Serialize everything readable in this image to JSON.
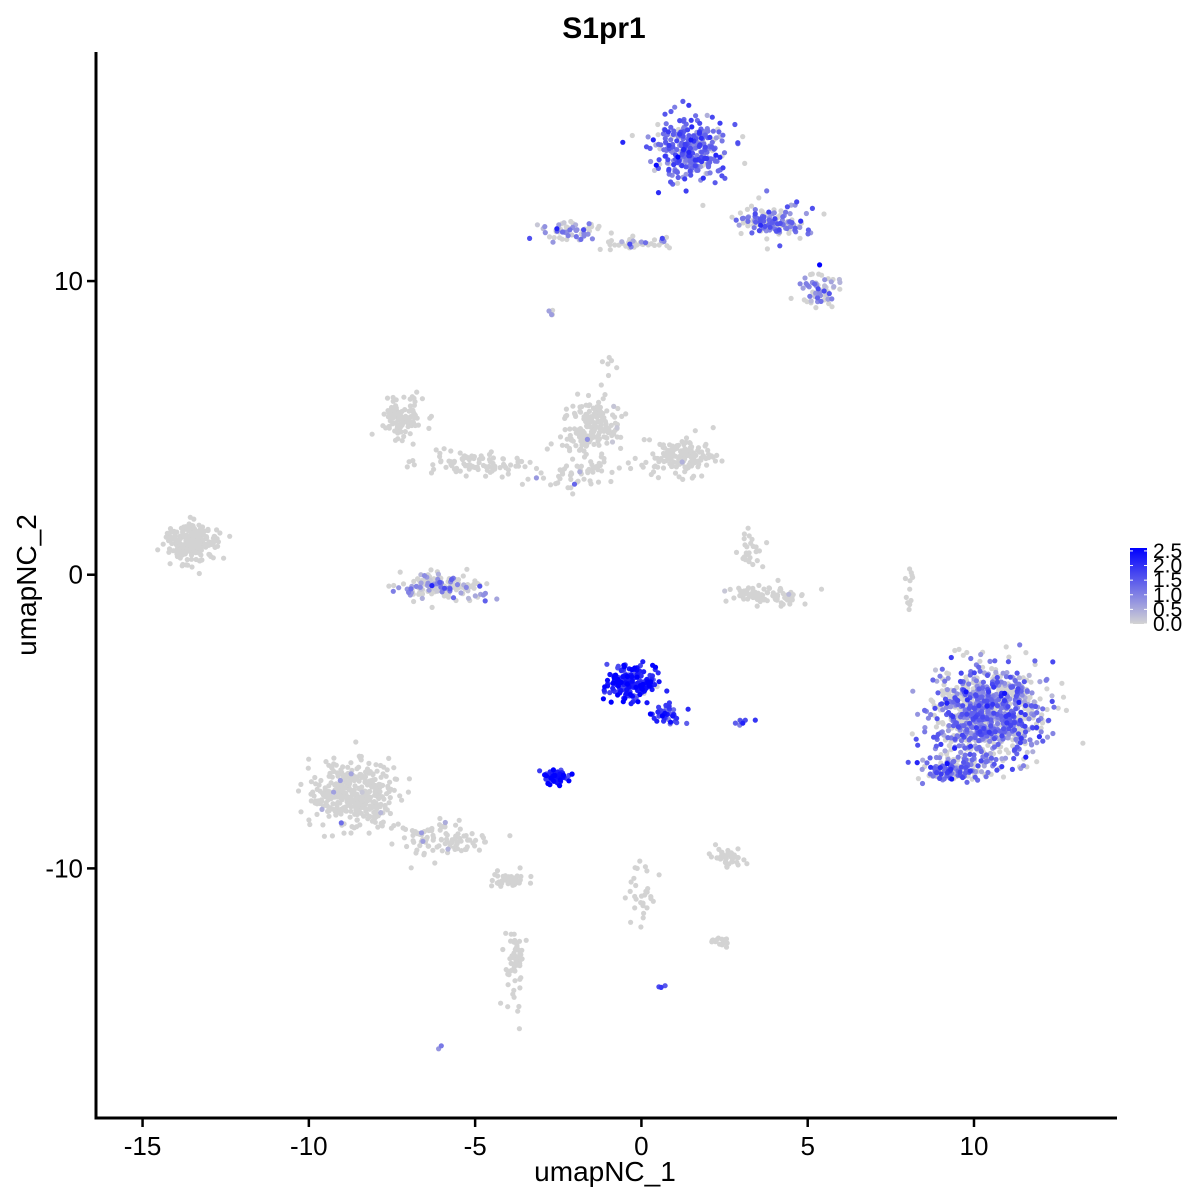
{
  "chart_data": {
    "type": "scatter",
    "title": "S1pr1",
    "xlabel": "umapNC_1",
    "ylabel": "umapNC_2",
    "xlim": [
      -16.4,
      14.3
    ],
    "ylim": [
      -18.5,
      17.8
    ],
    "x_ticks": [
      -15,
      -10,
      -5,
      0,
      5,
      10
    ],
    "x_tick_labels": [
      "-15",
      "-10",
      "-5",
      "0",
      "5",
      "10"
    ],
    "y_ticks": [
      10,
      0,
      -10
    ],
    "y_tick_labels": [
      "10",
      "0",
      "-10"
    ],
    "grid": false,
    "legend_position": "right",
    "color_scale": {
      "low_color": "#d3d3d3",
      "high_color": "#0000ff",
      "min": 0.0,
      "max": 2.6,
      "breaks": [
        2.5,
        2.0,
        1.5,
        1.0,
        0.5,
        0.0
      ],
      "break_labels": [
        "2.5",
        "2.0",
        "1.5",
        "1.0",
        "0.5",
        "0.0"
      ]
    },
    "clusters": [
      {
        "center": [
          1.5,
          14.5
        ],
        "spread": [
          1.0,
          1.0
        ],
        "n": 300,
        "expr_mean": 1.3,
        "expr_frac": 0.85
      },
      {
        "center": [
          3.9,
          12.0
        ],
        "spread": [
          1.0,
          0.5
        ],
        "n": 140,
        "expr_mean": 1.2,
        "expr_frac": 0.6
      },
      {
        "center": [
          5.4,
          9.7
        ],
        "spread": [
          0.5,
          0.6
        ],
        "n": 60,
        "expr_mean": 0.9,
        "expr_frac": 0.45
      },
      {
        "center": [
          -2.2,
          11.7
        ],
        "spread": [
          0.9,
          0.35
        ],
        "n": 60,
        "expr_mean": 0.9,
        "expr_frac": 0.35
      },
      {
        "center": [
          -0.2,
          11.3
        ],
        "spread": [
          1.0,
          0.25
        ],
        "n": 40,
        "expr_mean": 0.8,
        "expr_frac": 0.3
      },
      {
        "center": [
          -7.2,
          5.3
        ],
        "spread": [
          0.6,
          0.6
        ],
        "n": 110,
        "expr_mean": 0.0,
        "expr_frac": 0.0
      },
      {
        "center": [
          -5.0,
          3.8
        ],
        "spread": [
          1.5,
          0.4
        ],
        "n": 90,
        "expr_mean": 0.0,
        "expr_frac": 0.0
      },
      {
        "center": [
          -1.5,
          5.0
        ],
        "spread": [
          0.8,
          0.8
        ],
        "n": 170,
        "expr_mean": 0.5,
        "expr_frac": 0.03
      },
      {
        "center": [
          1.2,
          4.0
        ],
        "spread": [
          0.9,
          0.6
        ],
        "n": 140,
        "expr_mean": 0.5,
        "expr_frac": 0.03
      },
      {
        "center": [
          -2.0,
          3.5
        ],
        "spread": [
          1.3,
          0.5
        ],
        "n": 60,
        "expr_mean": 0.5,
        "expr_frac": 0.03
      },
      {
        "center": [
          -13.5,
          1.1
        ],
        "spread": [
          0.7,
          0.6
        ],
        "n": 220,
        "expr_mean": 0.0,
        "expr_frac": 0.0
      },
      {
        "center": [
          -6.0,
          -0.4
        ],
        "spread": [
          1.1,
          0.4
        ],
        "n": 160,
        "expr_mean": 0.9,
        "expr_frac": 0.3
      },
      {
        "center": [
          3.7,
          -0.7
        ],
        "spread": [
          1.1,
          0.3
        ],
        "n": 90,
        "expr_mean": 0.5,
        "expr_frac": 0.03
      },
      {
        "center": [
          3.3,
          0.8
        ],
        "spread": [
          0.4,
          0.5
        ],
        "n": 25,
        "expr_mean": 0.0,
        "expr_frac": 0.0
      },
      {
        "center": [
          -0.3,
          -3.7
        ],
        "spread": [
          0.7,
          0.6
        ],
        "n": 200,
        "expr_mean": 2.1,
        "expr_frac": 0.98
      },
      {
        "center": [
          0.8,
          -4.8
        ],
        "spread": [
          0.5,
          0.4
        ],
        "n": 40,
        "expr_mean": 1.8,
        "expr_frac": 0.95
      },
      {
        "center": [
          -2.5,
          -6.9
        ],
        "spread": [
          0.4,
          0.2
        ],
        "n": 60,
        "expr_mean": 2.2,
        "expr_frac": 0.98
      },
      {
        "center": [
          10.4,
          -4.7
        ],
        "spread": [
          1.4,
          1.4
        ],
        "n": 1000,
        "expr_mean": 1.1,
        "expr_frac": 0.55
      },
      {
        "center": [
          9.5,
          -6.6
        ],
        "spread": [
          1.0,
          0.4
        ],
        "n": 150,
        "expr_mean": 1.3,
        "expr_frac": 0.7
      },
      {
        "center": [
          -8.7,
          -7.5
        ],
        "spread": [
          1.2,
          1.1
        ],
        "n": 380,
        "expr_mean": 0.5,
        "expr_frac": 0.02
      },
      {
        "center": [
          -6.0,
          -9.0
        ],
        "spread": [
          1.2,
          0.5
        ],
        "n": 100,
        "expr_mean": 0.5,
        "expr_frac": 0.02
      },
      {
        "center": [
          -4.0,
          -10.4
        ],
        "spread": [
          0.5,
          0.2
        ],
        "n": 40,
        "expr_mean": 0.5,
        "expr_frac": 0.02
      },
      {
        "center": [
          -3.8,
          -13.3
        ],
        "spread": [
          0.3,
          1.5
        ],
        "n": 60,
        "expr_mean": 0.0,
        "expr_frac": 0.0
      },
      {
        "center": [
          2.5,
          -9.6
        ],
        "spread": [
          0.6,
          0.3
        ],
        "n": 40,
        "expr_mean": 0.0,
        "expr_frac": 0.0
      },
      {
        "center": [
          0.0,
          -10.8
        ],
        "spread": [
          0.4,
          1.0
        ],
        "n": 30,
        "expr_mean": 0.0,
        "expr_frac": 0.0
      },
      {
        "center": [
          2.3,
          -12.5
        ],
        "spread": [
          0.3,
          0.2
        ],
        "n": 15,
        "expr_mean": 0.0,
        "expr_frac": 0.0
      },
      {
        "center": [
          3.0,
          -5.0
        ],
        "spread": [
          0.3,
          0.1
        ],
        "n": 8,
        "expr_mean": 1.5,
        "expr_frac": 0.9
      },
      {
        "center": [
          -0.9,
          7.2
        ],
        "spread": [
          0.3,
          0.3
        ],
        "n": 6,
        "expr_mean": 0.0,
        "expr_frac": 0.0
      },
      {
        "center": [
          8.1,
          -0.5
        ],
        "spread": [
          0.2,
          0.8
        ],
        "n": 12,
        "expr_mean": 0.0,
        "expr_frac": 0.0
      },
      {
        "center": [
          0.6,
          -14.0
        ],
        "spread": [
          0.1,
          0.1
        ],
        "n": 3,
        "expr_mean": 1.2,
        "expr_frac": 1.0
      },
      {
        "center": [
          -6.0,
          -16.1
        ],
        "spread": [
          0.1,
          0.1
        ],
        "n": 2,
        "expr_mean": 1.0,
        "expr_frac": 1.0
      },
      {
        "center": [
          -2.7,
          8.9
        ],
        "spread": [
          0.1,
          0.15
        ],
        "n": 4,
        "expr_mean": 0.8,
        "expr_frac": 0.5
      }
    ]
  }
}
